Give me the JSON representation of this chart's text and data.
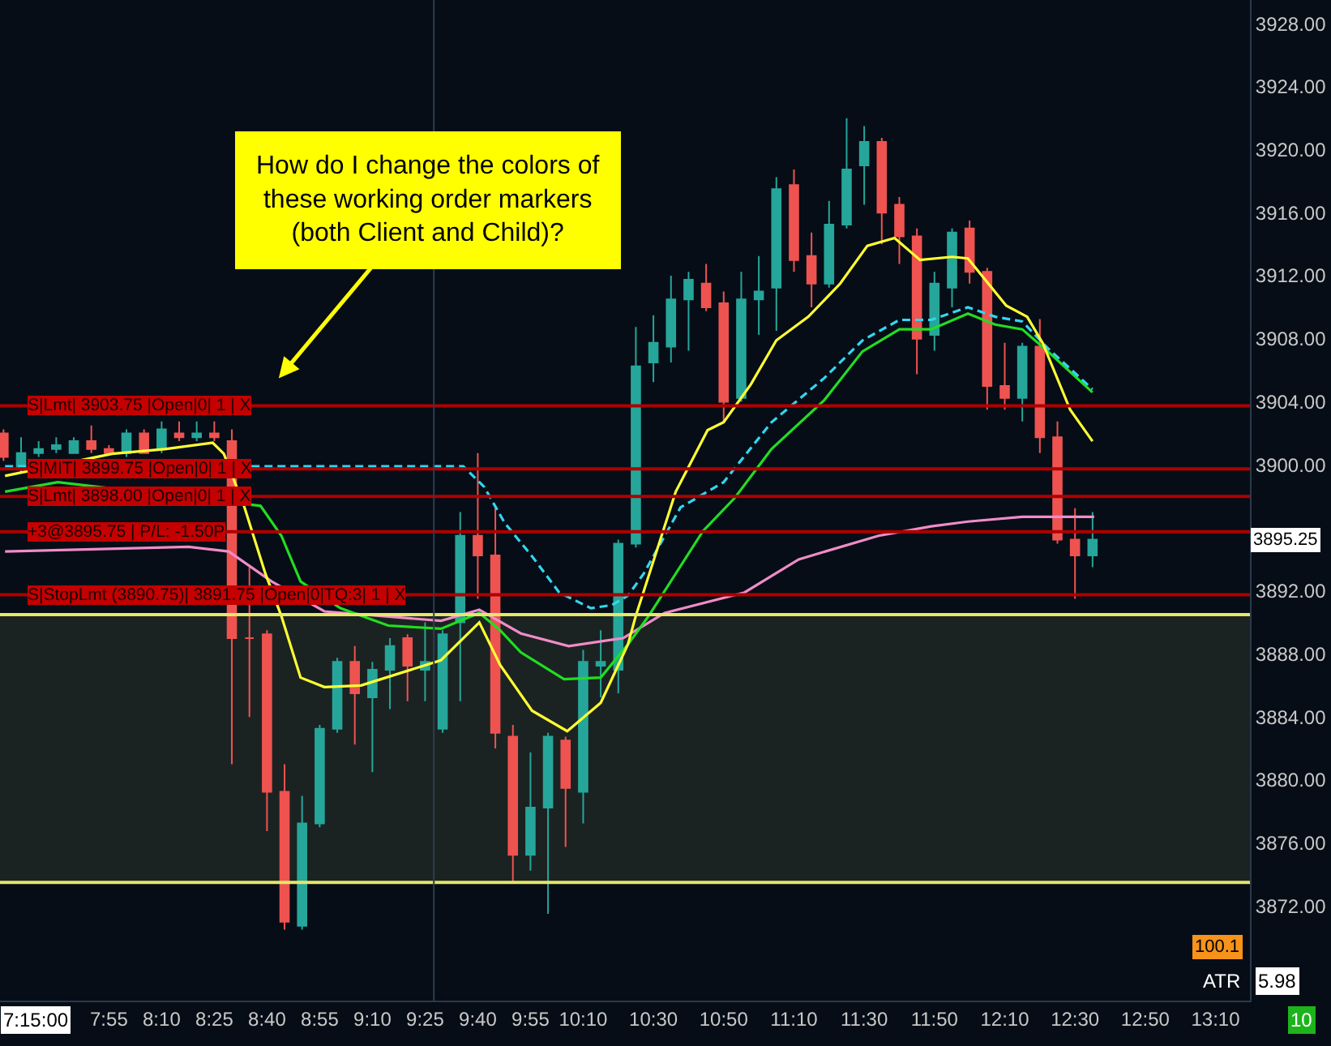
{
  "chart_data": {
    "type": "candlestick",
    "x": [
      7.4167,
      7.5,
      7.5833,
      7.6667,
      7.75,
      7.8333,
      7.9167,
      8,
      8.0833,
      8.1667,
      8.25,
      8.3333,
      8.4167,
      8.5,
      8.5833,
      8.6667,
      8.75,
      8.8333,
      8.9167,
      9,
      9.0833,
      9.1667,
      9.25,
      9.3333,
      9.4167,
      9.5,
      9.5833,
      9.6667,
      9.75,
      9.8333,
      9.9167,
      10,
      10.0833,
      10.1667,
      10.25,
      10.3333,
      10.4167,
      10.5,
      10.5833,
      10.6667,
      10.75,
      10.8333,
      10.9167,
      11,
      11.0833,
      11.1667,
      11.25,
      11.3333,
      11.4167,
      11.5,
      11.5833,
      11.6667,
      11.75,
      11.8333,
      11.9167,
      12,
      12.0833,
      12.1667,
      12.25,
      12.3333,
      12.4167,
      12.5,
      12.5833
    ],
    "ohlc": [
      [
        3902,
        3902.25,
        3900.25,
        3900.5
      ],
      [
        3899.75,
        3901.75,
        3899.5,
        3900.75
      ],
      [
        3900.75,
        3901.5,
        3900.5,
        3901
      ],
      [
        3901,
        3901.75,
        3900.75,
        3901.25
      ],
      [
        3900.75,
        3901.75,
        3900.75,
        3901.5
      ],
      [
        3901.5,
        3902.5,
        3900.75,
        3901
      ],
      [
        3901,
        3901.25,
        3900.75,
        3900.75
      ],
      [
        3900.75,
        3902.25,
        3900.5,
        3902
      ],
      [
        3902,
        3902.25,
        3900.75,
        3900.75
      ],
      [
        3901,
        3902.75,
        3900.75,
        3902.25
      ],
      [
        3902,
        3902.75,
        3901.5,
        3901.75
      ],
      [
        3901.75,
        3902.75,
        3901.5,
        3902
      ],
      [
        3902,
        3902.75,
        3901.5,
        3901.75
      ],
      [
        3901.5,
        3902.25,
        3881,
        3889
      ],
      [
        3889,
        3893.5,
        3884,
        3889
      ],
      [
        3889.25,
        3889.5,
        3876.75,
        3879.25
      ],
      [
        3879.25,
        3881,
        3870.5,
        3871
      ],
      [
        3870.75,
        3879,
        3870.5,
        3877.25
      ],
      [
        3877.25,
        3883.5,
        3877,
        3883.25
      ],
      [
        3883.25,
        3887.75,
        3883,
        3887.5
      ],
      [
        3887.5,
        3888.5,
        3882.25,
        3885.5
      ],
      [
        3885.25,
        3887.5,
        3880.5,
        3887
      ],
      [
        3887,
        3889,
        3884.5,
        3888.5
      ],
      [
        3889,
        3889.25,
        3885,
        3887.25
      ],
      [
        3887,
        3890,
        3885,
        3887.5
      ],
      [
        3883.25,
        3889.5,
        3883,
        3889.25
      ],
      [
        3890,
        3897,
        3885,
        3895.5
      ],
      [
        3895.5,
        3900.75,
        3891.5,
        3894.25
      ],
      [
        3894.25,
        3897.25,
        3882,
        3883
      ],
      [
        3882.75,
        3883.5,
        3873.5,
        3875.25
      ],
      [
        3875.25,
        3881.75,
        3874.25,
        3878.25
      ],
      [
        3878.25,
        3883,
        3871.5,
        3882.75
      ],
      [
        3882.5,
        3882.75,
        3875.75,
        3879.5
      ],
      [
        3879.25,
        3888.25,
        3877.25,
        3887.5
      ],
      [
        3887.25,
        3889.5,
        3885.25,
        3887.5
      ],
      [
        3887,
        3895.25,
        3885.5,
        3895
      ],
      [
        3895,
        3908.75,
        3894.75,
        3906.25
      ],
      [
        3906.5,
        3909.5,
        3905.25,
        3907.75
      ],
      [
        3907.5,
        3912,
        3906.5,
        3910.5
      ],
      [
        3910.5,
        3912.25,
        3907.25,
        3911.75
      ],
      [
        3911.5,
        3912.75,
        3909.75,
        3910
      ],
      [
        3910.25,
        3911,
        3902.75,
        3904
      ],
      [
        3904.25,
        3912.25,
        3904,
        3910.5
      ],
      [
        3910.5,
        3913.25,
        3908.25,
        3911
      ],
      [
        3911.25,
        3918.25,
        3908.5,
        3917.5
      ],
      [
        3917.75,
        3918.75,
        3912.25,
        3913
      ],
      [
        3913.25,
        3914.75,
        3910,
        3911.5
      ],
      [
        3911.5,
        3916.75,
        3911.25,
        3915.25
      ],
      [
        3915.25,
        3922,
        3915,
        3918.75
      ],
      [
        3919,
        3921.5,
        3916.5,
        3920.5
      ],
      [
        3920.5,
        3920.75,
        3914,
        3916
      ],
      [
        3916.5,
        3917,
        3912.75,
        3914.5
      ],
      [
        3914.5,
        3915,
        3905.75,
        3908
      ],
      [
        3908.25,
        3912.25,
        3907.25,
        3911.5
      ],
      [
        3911.25,
        3915,
        3910,
        3914.75
      ],
      [
        3915,
        3915.5,
        3911.5,
        3912.25
      ],
      [
        3912.25,
        3912.5,
        3903.5,
        3905
      ],
      [
        3905,
        3907.75,
        3903.5,
        3904.25
      ],
      [
        3904.25,
        3907.75,
        3902.75,
        3907.5
      ],
      [
        3907.5,
        3909.25,
        3900.75,
        3901.75
      ],
      [
        3901.75,
        3902.75,
        3895,
        3895.25
      ],
      [
        3895.25,
        3897.25,
        3891.5,
        3894.25
      ],
      [
        3894.25,
        3897,
        3893.5,
        3895.25
      ]
    ],
    "colors": [
      "#ef5350",
      "#26a69a",
      "#26a69a",
      "#26a69a",
      "#26a69a",
      "#ef5350",
      "#ef5350",
      "#26a69a",
      "#ef5350",
      "#26a69a",
      "#ef5350",
      "#26a69a",
      "#ef5350",
      "#ef5350",
      "#ef5350",
      "#ef5350",
      "#ef5350",
      "#26a69a",
      "#26a69a",
      "#26a69a",
      "#ef5350",
      "#26a69a",
      "#26a69a",
      "#ef5350",
      "#26a69a",
      "#26a69a",
      "#26a69a",
      "#ef5350",
      "#ef5350",
      "#ef5350",
      "#26a69a",
      "#26a69a",
      "#ef5350",
      "#26a69a",
      "#26a69a",
      "#26a69a",
      "#26a69a",
      "#26a69a",
      "#26a69a",
      "#26a69a",
      "#ef5350",
      "#ef5350",
      "#26a69a",
      "#26a69a",
      "#26a69a",
      "#ef5350",
      "#ef5350",
      "#26a69a",
      "#26a69a",
      "#26a69a",
      "#ef5350",
      "#ef5350",
      "#ef5350",
      "#26a69a",
      "#26a69a",
      "#ef5350",
      "#ef5350",
      "#ef5350",
      "#26a69a",
      "#ef5350",
      "#ef5350",
      "#ef5350",
      "#26a69a"
    ],
    "series": [
      {
        "type": "line",
        "color": "#f08cc8",
        "x": [
          7.424,
          8.295,
          8.485,
          8.689,
          8.939,
          9.492,
          9.674,
          9.871,
          10.098,
          10.356,
          10.553,
          10.932,
          11.189,
          11.568,
          11.818,
          11.992,
          12.25,
          12.591
        ],
        "values": [
          3894.5,
          3894.8,
          3894.5,
          3892.6,
          3890.7,
          3890.1,
          3890.8,
          3889.3,
          3888.5,
          3889,
          3890.6,
          3891.9,
          3894,
          3895.5,
          3896.1,
          3896.4,
          3896.7,
          3896.7
        ]
      },
      {
        "type": "line",
        "color": "#22dd22",
        "x": [
          7.424,
          7.674,
          8.636,
          8.735,
          8.826,
          9.015,
          9.242,
          9.492,
          9.674,
          9.773,
          9.871,
          10.076,
          10.25,
          10.379,
          10.477,
          10.735,
          10.886,
          11.06,
          11.31,
          11.492,
          11.667,
          11.818,
          11.992,
          12.121,
          12.25,
          12.371,
          12.583
        ],
        "values": [
          3898.3,
          3898.9,
          3897.4,
          3895.5,
          3892.6,
          3890.9,
          3889.8,
          3889.6,
          3890.6,
          3889.5,
          3888.1,
          3886.4,
          3886.5,
          3888.6,
          3890.4,
          3895.8,
          3897.9,
          3901,
          3904.1,
          3907.2,
          3908.6,
          3908.6,
          3909.6,
          3908.9,
          3908.6,
          3907.2,
          3904.6
        ]
      },
      {
        "type": "line",
        "color": "#33d6f0",
        "line_style": "dashed",
        "x": [
          7.424,
          9.598,
          9.697,
          9.795,
          9.924,
          10.053,
          10.204,
          10.303,
          10.379,
          10.454,
          10.629,
          10.833,
          11.06,
          11.31,
          11.492,
          11.667,
          11.818,
          11.992,
          12.121,
          12.25,
          12.371,
          12.583
        ],
        "values": [
          3899.9,
          3899.9,
          3898.6,
          3896.3,
          3894.2,
          3891.9,
          3890.9,
          3891.1,
          3891.7,
          3893.1,
          3897.3,
          3898.9,
          3902.7,
          3905.5,
          3907.9,
          3909.2,
          3909.2,
          3910,
          3909.4,
          3909.1,
          3907.4,
          3904.8
        ]
      },
      {
        "type": "line",
        "color": "#ffff33",
        "x": [
          7.424,
          7.932,
          8.182,
          8.409,
          8.462,
          8.56,
          8.659,
          8.735,
          8.826,
          8.939,
          9.113,
          9.492,
          9.674,
          9.773,
          9.924,
          10.091,
          10.25,
          10.379,
          10.416,
          10.606,
          10.757,
          10.833,
          10.962,
          11.083,
          11.235,
          11.386,
          11.515,
          11.644,
          11.765,
          11.917,
          11.992,
          12.174,
          12.273,
          12.348,
          12.477,
          12.583
        ],
        "values": [
          3899.3,
          3900.7,
          3901,
          3901.4,
          3900.7,
          3897.3,
          3893.1,
          3890.4,
          3886.5,
          3885.9,
          3886,
          3887.6,
          3890,
          3887.3,
          3884.4,
          3883.1,
          3884.9,
          3888.6,
          3890.4,
          3898.3,
          3902.2,
          3902.7,
          3905.1,
          3907.9,
          3909.4,
          3911.5,
          3913.9,
          3914.4,
          3913,
          3913.2,
          3913.1,
          3910.1,
          3909.4,
          3907.7,
          3903.5,
          3901.5
        ]
      }
    ],
    "xlim": [
      7.4,
      13.33
    ],
    "xticks": [
      {
        "value": 7.9167,
        "label": "7:55"
      },
      {
        "value": 8.1667,
        "label": "8:10"
      },
      {
        "value": 8.4167,
        "label": "8:25"
      },
      {
        "value": 8.6667,
        "label": "8:40"
      },
      {
        "value": 8.9167,
        "label": "8:55"
      },
      {
        "value": 9.1667,
        "label": "9:10"
      },
      {
        "value": 9.4167,
        "label": "9:25"
      },
      {
        "value": 9.6667,
        "label": "9:40"
      },
      {
        "value": 9.9167,
        "label": "9:55"
      },
      {
        "value": 10.1667,
        "label": "10:10"
      },
      {
        "value": 10.5,
        "label": "10:30"
      },
      {
        "value": 10.8333,
        "label": "10:50"
      },
      {
        "value": 11.1667,
        "label": "11:10"
      },
      {
        "value": 11.5,
        "label": "11:30"
      },
      {
        "value": 11.8333,
        "label": "11:50"
      },
      {
        "value": 12.1667,
        "label": "12:10"
      },
      {
        "value": 12.5,
        "label": "12:30"
      },
      {
        "value": 12.8333,
        "label": "12:50"
      },
      {
        "value": 13.1667,
        "label": "13:10"
      }
    ],
    "ylim": [
      3866,
      3929.5
    ],
    "yticks": [
      {
        "value": 3872,
        "label": "3872.00"
      },
      {
        "value": 3876,
        "label": "3876.00"
      },
      {
        "value": 3880,
        "label": "3880.00"
      },
      {
        "value": 3884,
        "label": "3884.00"
      },
      {
        "value": 3888,
        "label": "3888.00"
      },
      {
        "value": 3892,
        "label": "3892.00"
      },
      {
        "value": 3896,
        "label": null
      },
      {
        "value": 3900,
        "label": "3900.00"
      },
      {
        "value": 3904,
        "label": "3904.00"
      },
      {
        "value": 3908,
        "label": "3908.00"
      },
      {
        "value": 3912,
        "label": "3912.00"
      },
      {
        "value": 3916,
        "label": "3916.00"
      },
      {
        "value": 3920,
        "label": "3920.00"
      },
      {
        "value": 3924,
        "label": "3924.00"
      },
      {
        "value": 3928,
        "label": "3928.00"
      }
    ],
    "ref_lines": [
      {
        "axis": "y",
        "value": 3903.75,
        "label": "S|Lmt| 3903.75 |Open|0| 1 | X",
        "color": "#b00000"
      },
      {
        "axis": "y",
        "value": 3899.75,
        "label": "S|MIT| 3899.75 |Open|0| 1 | X",
        "color": "#b00000"
      },
      {
        "axis": "y",
        "value": 3898,
        "label": "S|Lmt| 3898.00 |Open|0| 1 | X",
        "color": "#b00000"
      },
      {
        "axis": "y",
        "value": 3895.75,
        "label": "+3@3895.75 | P/L: -1.50P",
        "color": "#b00000"
      },
      {
        "axis": "y",
        "value": 3891.75,
        "label": "S|StopLmt (3890.75)| 3891.75 |Open|0|TQ:3| 1 | X",
        "color": "#b00000"
      },
      {
        "axis": "y",
        "value": 3890.5,
        "color": "#e6e66a"
      },
      {
        "axis": "y",
        "value": 3873.5,
        "color": "#e6e66a"
      },
      {
        "axis": "x",
        "value": 9.4583,
        "color": "#2c3e50"
      }
    ],
    "bands": [
      {
        "axis": "y",
        "from": 3873.5,
        "to": 3890.5,
        "color": "#1b2322"
      }
    ],
    "annotations": [
      "How do I change the colors of\nthese working order markers\n(both Client and Child)?",
      "7:15:00",
      {
        "text": "3895.25",
        "y": 3895.25
      },
      "100.1",
      "ATR",
      "5.98",
      "10"
    ],
    "grid": false
  }
}
